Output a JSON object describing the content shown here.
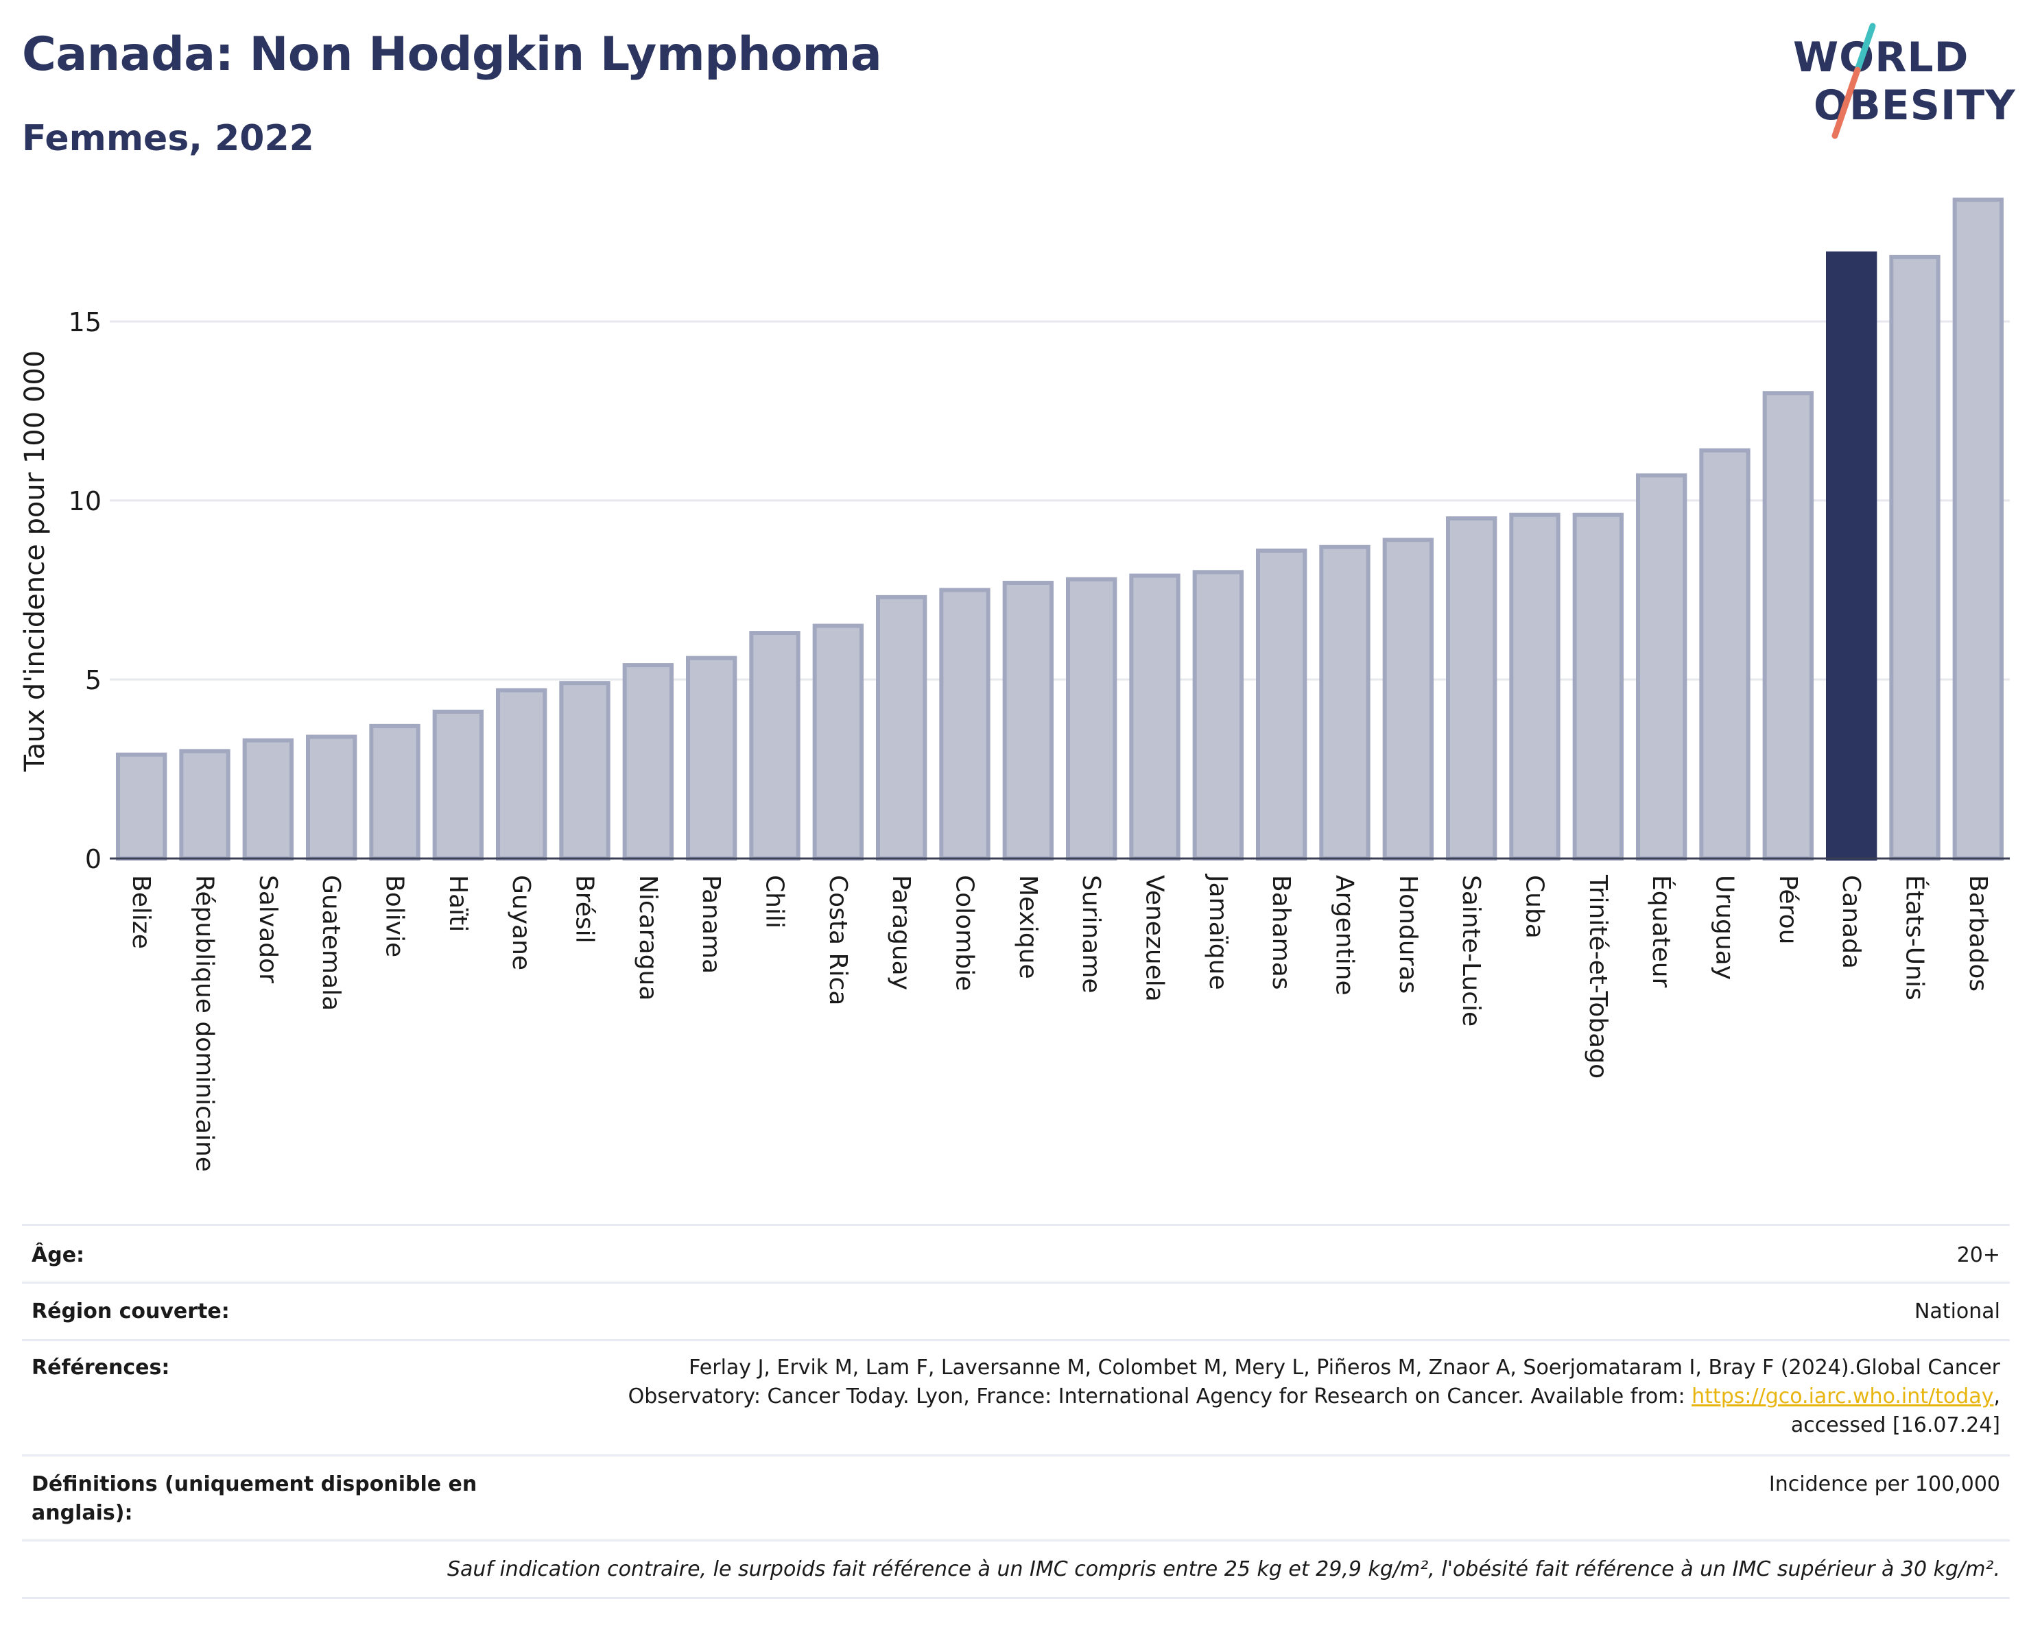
{
  "header": {
    "title": "Canada: Non Hodgkin Lymphoma",
    "subtitle": "Femmes, 2022"
  },
  "logo": {
    "line1": "WORLD",
    "line2": "OBESITY",
    "slash_colors": [
      "#3fbfbf",
      "#e8745c"
    ]
  },
  "colors": {
    "bar_default": "#bec2d1",
    "bar_default_stroke": "#a2a8bf",
    "bar_highlight": "#2b3560",
    "text": "#2b3560",
    "grid": "#e6e8ee"
  },
  "chart_data": {
    "type": "bar",
    "title": "Canada: Non Hodgkin Lymphoma",
    "subtitle": "Femmes, 2022",
    "xlabel": "",
    "ylabel": "Taux d'incidence pour 100 000",
    "ylim": [
      0,
      19
    ],
    "yticks": [
      0,
      5,
      10,
      15
    ],
    "grid": true,
    "highlight": "Canada",
    "categories": [
      "Belize",
      "République dominicaine",
      "Salvador",
      "Guatemala",
      "Bolivie",
      "Haïti",
      "Guyane",
      "Brésil",
      "Nicaragua",
      "Panama",
      "Chili",
      "Costa Rica",
      "Paraguay",
      "Colombie",
      "Mexique",
      "Suriname",
      "Venezuela",
      "Jamaïque",
      "Bahamas",
      "Argentine",
      "Honduras",
      "Sainte-Lucie",
      "Cuba",
      "Trinité-et-Tobago",
      "Équateur",
      "Uruguay",
      "Pérou",
      "Canada",
      "États-Unis",
      "Barbados"
    ],
    "values": [
      2.9,
      3.0,
      3.3,
      3.4,
      3.7,
      4.1,
      4.7,
      4.9,
      5.4,
      5.6,
      6.3,
      6.5,
      7.3,
      7.5,
      7.7,
      7.8,
      7.9,
      8.0,
      8.6,
      8.7,
      8.9,
      9.5,
      9.6,
      9.6,
      10.7,
      11.4,
      13.0,
      16.9,
      16.8,
      18.4
    ]
  },
  "info": {
    "age_label": "Âge:",
    "age_value": "20+",
    "region_label": "Région couverte:",
    "region_value": "National",
    "references_label": "Références:",
    "references_text_1": "Ferlay J, Ervik M, Lam F, Laversanne M, Colombet M, Mery L, Piñeros M, Znaor A, Soerjomataram I, Bray F (2024).Global Cancer Observatory: Cancer Today. Lyon, France: International Agency for Research on Cancer. Available from: ",
    "references_link": "https://gco.iarc.who.int/today",
    "references_text_2": ", accessed [16.07.24]",
    "definitions_label": "Définitions (uniquement disponible en anglais):",
    "definitions_value": "Incidence per 100,000",
    "footnote": "Sauf indication contraire, le surpoids fait référence à un IMC compris entre 25 kg et 29,9 kg/m², l'obésité fait référence à un IMC supérieur à 30 kg/m²."
  }
}
